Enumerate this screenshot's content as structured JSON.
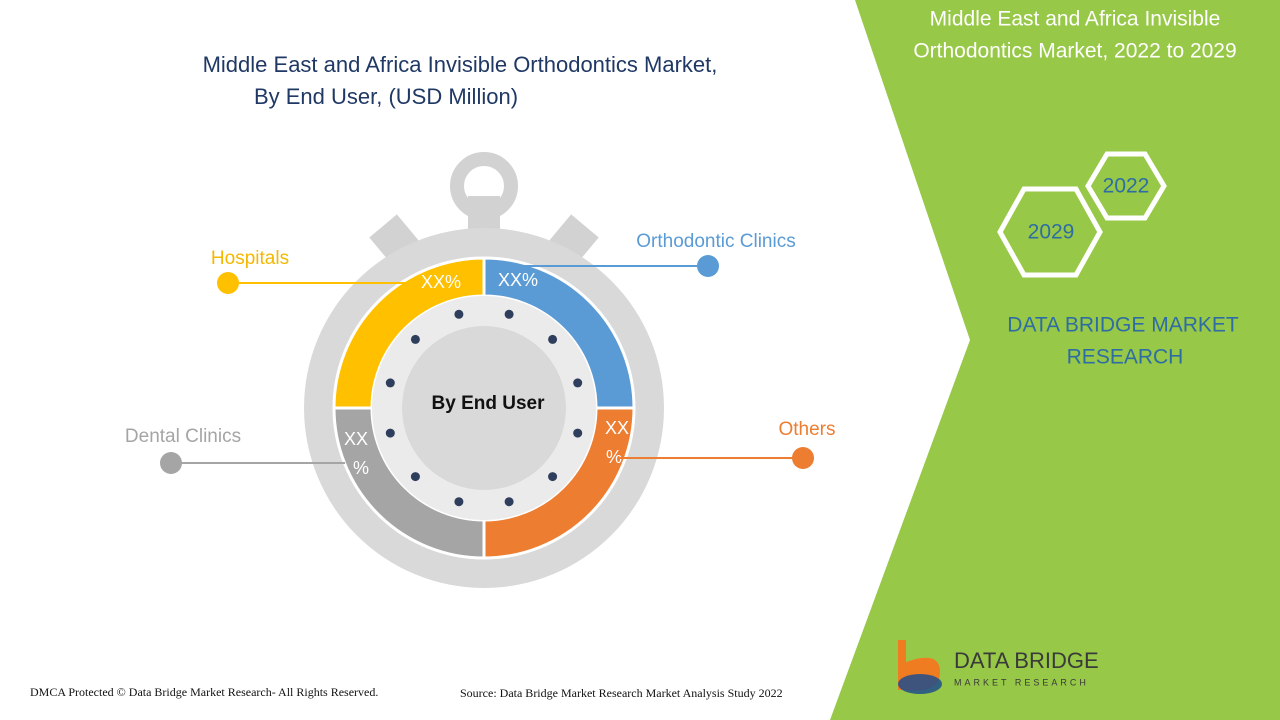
{
  "header": {
    "title_line1": "Middle East and Africa Invisible Orthodontics Market,",
    "title_line2": "By End User, (USD Million)"
  },
  "center_label": "By End User",
  "segments": [
    {
      "name": "Orthodontic Clinics",
      "value_label": "XX%"
    },
    {
      "name": "Others",
      "value_label": [
        "XX",
        "%"
      ]
    },
    {
      "name": "Dental Clinics",
      "value_label": [
        "XX",
        "%"
      ]
    },
    {
      "name": "Hospitals",
      "value_label": "XX%"
    }
  ],
  "side_panel": {
    "title_line1": "Middle East and Africa Invisible",
    "title_line2": "Orthodontics Market, 2022 to 2029",
    "years": [
      "2022",
      "2029"
    ],
    "brand_line1": "DATA BRIDGE MARKET",
    "brand_line2": "RESEARCH"
  },
  "logo": {
    "line1": "DATA BRIDGE",
    "line2": "MARKET RESEARCH"
  },
  "footer": {
    "left": "DMCA Protected © Data Bridge Market Research- All Rights Reserved.",
    "right": "Source: Data Bridge Market Research Market Analysis Study 2022"
  }
}
